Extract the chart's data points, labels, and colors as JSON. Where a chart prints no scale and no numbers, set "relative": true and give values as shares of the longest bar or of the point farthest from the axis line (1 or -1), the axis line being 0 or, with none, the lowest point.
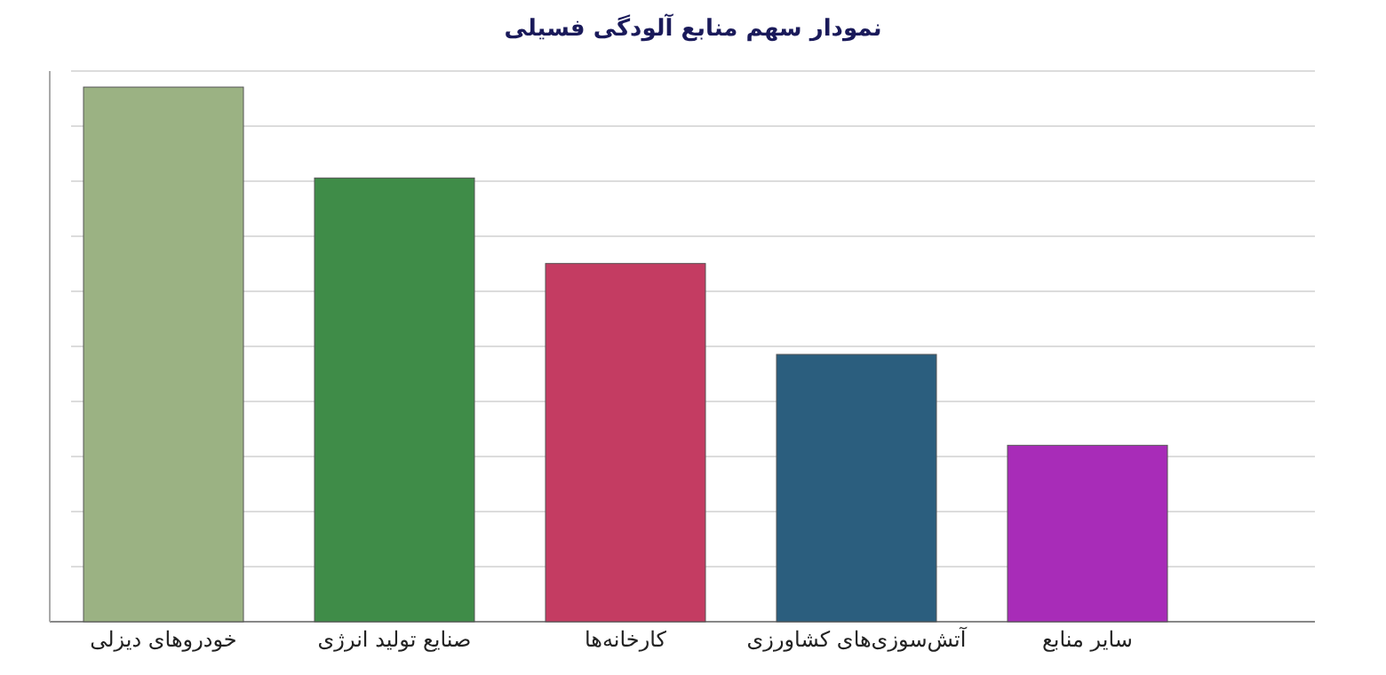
{
  "chart_data": {
    "type": "bar",
    "title": "نمودار سهم منابع آلودگی فسیلی",
    "categories": [
      "خودروهای دیزلی",
      "صنایع تولید انرژی",
      "کارخانه‌ها",
      "آتش‌سوزی‌های کشاورزی",
      "سایر منابع"
    ],
    "values": [
      1,
      0.83,
      0.67,
      0.5,
      0.33
    ],
    "colors": [
      "#9bb283",
      "#3f8c48",
      "#c43c62",
      "#2b5e7e",
      "#a82cb8"
    ],
    "relative": true,
    "grid": "y"
  }
}
